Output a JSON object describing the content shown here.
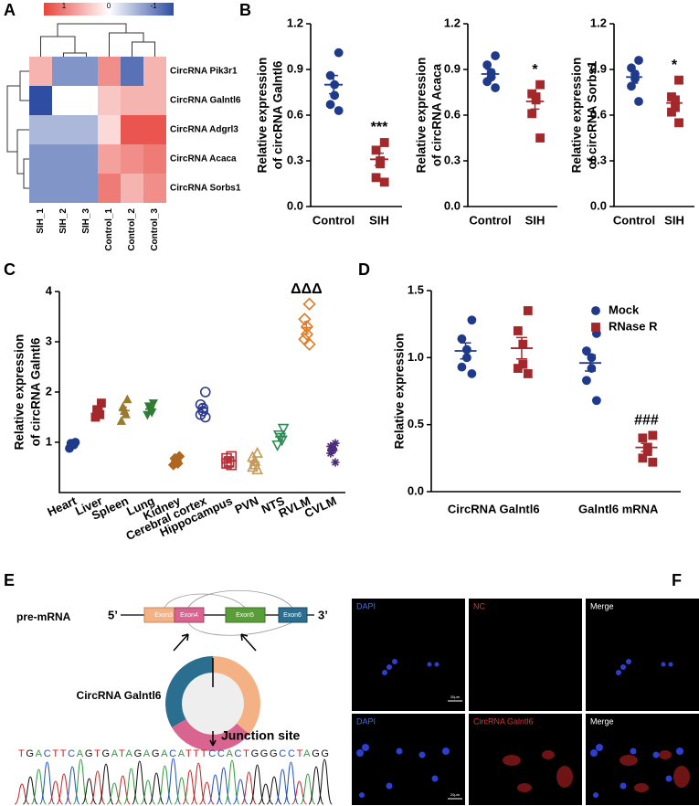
{
  "letters": [
    "A",
    "B",
    "C",
    "D",
    "E",
    "F"
  ],
  "chart_data": [
    {
      "type": "heatmap",
      "rows": [
        "CircRNA Pik3r1",
        "CircRNA Galntl6",
        "CircRNA Adgrl3",
        "CircRNA Acaca",
        "CircRNA Sorbs1"
      ],
      "columns": [
        "SIH_1",
        "SIH_2",
        "SIH_3",
        "Control_1",
        "Control_2",
        "Control_3"
      ],
      "values": [
        [
          0.4,
          -0.6,
          -0.6,
          0.6,
          -0.8,
          0.4
        ],
        [
          -1,
          0,
          0,
          0.3,
          0.4,
          0.4
        ],
        [
          -0.4,
          -0.4,
          -0.4,
          0.2,
          0.9,
          0.9
        ],
        [
          -0.6,
          -0.6,
          -0.6,
          0.5,
          0.6,
          0.7
        ],
        [
          -0.6,
          -0.6,
          -0.6,
          0.7,
          0.4,
          0.6
        ]
      ],
      "zlim": [
        -1,
        1
      ],
      "colorbar_ticks": [
        1,
        0,
        -1
      ],
      "colorscale": [
        "#2f4ea3",
        "#ffffff",
        "#e8433b"
      ]
    },
    {
      "type": "dot",
      "ylabel": [
        "Relative expression",
        "of circRNA Galntl6"
      ],
      "categories": [
        "Control",
        "SIH"
      ],
      "ylim": [
        0,
        1.2
      ],
      "yticks": [
        {
          "value": 0,
          "label": "0.0"
        },
        0.3,
        0.6,
        0.9,
        1.2
      ],
      "series": [
        {
          "colors": [
            "#1f3a8a",
            "#a3282c"
          ],
          "markers": [
            "circle",
            "square"
          ],
          "values": [
            [
              1.01,
              0.86,
              0.8,
              0.73,
              0.67,
              0.63
            ],
            [
              0.42,
              0.37,
              0.3,
              0.28,
              0.19,
              0.16
            ]
          ],
          "means": [
            0.8,
            0.31
          ],
          "errors": [
            0.06,
            0.04
          ]
        }
      ],
      "annotation": "***",
      "annotation_at": "SIH"
    },
    {
      "type": "dot",
      "ylabel": [
        "Relative expression",
        "of circRNA Acaca"
      ],
      "categories": [
        "Control",
        "SIH"
      ],
      "ylim": [
        0,
        1.2
      ],
      "yticks": [
        {
          "value": 0,
          "label": "0.0"
        },
        0.3,
        0.6,
        0.9,
        1.2
      ],
      "series": [
        {
          "colors": [
            "#1f3a8a",
            "#a3282c"
          ],
          "markers": [
            "circle",
            "square"
          ],
          "values": [
            [
              0.99,
              0.93,
              0.88,
              0.85,
              0.82,
              0.78
            ],
            [
              0.8,
              0.74,
              0.72,
              0.7,
              0.61,
              0.45
            ]
          ],
          "means": [
            0.87,
            0.69
          ],
          "errors": [
            0.03,
            0.05
          ]
        }
      ],
      "annotation": "*",
      "annotation_at": "SIH"
    },
    {
      "type": "dot",
      "ylabel": [
        "Relative expression",
        "of circRNA Sorbs1"
      ],
      "categories": [
        "Control",
        "SIH"
      ],
      "ylim": [
        0,
        1.2
      ],
      "yticks": [
        {
          "value": 0,
          "label": "0.0"
        },
        0.3,
        0.6,
        0.9,
        1.2
      ],
      "series": [
        {
          "colors": [
            "#1f3a8a",
            "#a3282c"
          ],
          "markers": [
            "circle",
            "square"
          ],
          "values": [
            [
              0.96,
              0.91,
              0.87,
              0.84,
              0.79,
              0.69
            ],
            [
              0.83,
              0.72,
              0.7,
              0.65,
              0.62,
              0.55
            ]
          ],
          "means": [
            0.85,
            0.68
          ],
          "errors": [
            0.04,
            0.04
          ]
        }
      ],
      "annotation": "*",
      "annotation_at": "SIH"
    },
    {
      "type": "dot",
      "ylabel": [
        "Relative expression",
        "of circRNA Galntl6"
      ],
      "categories": [
        "Heart",
        "Liver",
        "Spleen",
        "Lung",
        "Kidney",
        "Cerebral cortex",
        "Hippocampus",
        "PVN",
        "NTS",
        "RVLM",
        "CVLM"
      ],
      "ylim": [
        0,
        4
      ],
      "yticks": [
        1,
        2,
        3,
        4
      ],
      "series": [
        {
          "colors": [
            "#1f3a8a",
            "#a3282c",
            "#9a7a2c",
            "#2e7d32",
            "#b0661f",
            "#2b3a8f",
            "#b8323a",
            "#c49a5a",
            "#2e8b57",
            "#e07b24",
            "#4b2a7a"
          ],
          "markers": [
            "circle",
            "square",
            "triangle",
            "triangle-down",
            "diamond",
            "circle-open",
            "square-open",
            "triangle-open",
            "triangle-down-open",
            "diamond-open",
            "star"
          ],
          "values": [
            [
              1.0,
              0.98,
              0.97,
              0.95,
              0.88
            ],
            [
              1.78,
              1.65,
              1.6,
              1.55,
              1.5
            ],
            [
              1.85,
              1.7,
              1.62,
              1.55,
              1.42
            ],
            [
              1.78,
              1.72,
              1.65,
              1.6,
              1.55
            ],
            [
              0.72,
              0.68,
              0.62,
              0.58,
              0.55
            ],
            [
              2.0,
              1.75,
              1.68,
              1.62,
              1.55,
              1.5
            ],
            [
              0.72,
              0.68,
              0.62,
              0.6,
              0.58,
              0.55
            ],
            [
              0.78,
              0.7,
              0.62,
              0.55,
              0.5,
              0.45
            ],
            [
              1.28,
              1.15,
              1.1,
              1.05,
              0.95
            ],
            [
              3.75,
              3.45,
              3.3,
              3.15,
              3.05,
              2.95
            ],
            [
              0.98,
              0.92,
              0.88,
              0.85,
              0.78,
              0.6
            ]
          ],
          "means": [
            0.96,
            1.62,
            1.63,
            1.66,
            0.63,
            1.68,
            0.63,
            0.6,
            1.11,
            3.28,
            0.84
          ],
          "errors": [
            0.02,
            0.05,
            0.07,
            0.04,
            0.03,
            0.08,
            0.03,
            0.05,
            0.06,
            0.12,
            0.06
          ]
        }
      ],
      "annotation": "ΔΔΔ",
      "annotation_at": "RVLM"
    },
    {
      "type": "dot",
      "ylabel": [
        "Relative expression"
      ],
      "categories": [
        "CircRNA Galntl6",
        "Galntl6 mRNA"
      ],
      "ylim": [
        0,
        1.5
      ],
      "yticks": [
        {
          "value": 0,
          "label": "0.0"
        },
        0.5,
        {
          "value": 1,
          "label": "1.0"
        },
        1.5
      ],
      "series": [
        {
          "name": "Mock",
          "color": "#1f3a8a",
          "marker": "circle",
          "values": [
            [
              1.28,
              1.14,
              1.06,
              1.0,
              0.93,
              0.88
            ],
            [
              1.18,
              1.05,
              1.0,
              0.92,
              0.83,
              0.68
            ]
          ],
          "means": [
            1.05,
            0.96
          ],
          "errors": [
            0.06,
            0.06
          ]
        },
        {
          "name": "RNase R",
          "color": "#a3282c",
          "marker": "square",
          "values": [
            [
              1.35,
              1.2,
              1.1,
              0.95,
              0.92,
              0.88
            ],
            [
              0.42,
              0.4,
              0.33,
              0.3,
              0.25,
              0.22
            ]
          ],
          "means": [
            1.07,
            0.33
          ],
          "errors": [
            0.08,
            0.03
          ]
        }
      ],
      "annotation": "###",
      "annotation_at": "Galntl6 mRNA",
      "annotation_series": "RNase R"
    }
  ],
  "diagram": {
    "label": "pre-mRNA",
    "five": "5’",
    "three": "3’",
    "exons": [
      "Exon3",
      "Exon4",
      "Exon5",
      "Exon6"
    ],
    "circ_label": "CircRNA Galntl6",
    "junction": "Junction site",
    "sequence": "TGACTTCAGTGATAGAGACATTTCCACTGGGCCTAGG"
  },
  "images": {
    "labels": [
      "DAPI",
      "NC",
      "Merge",
      "DAPI",
      "CircRNA Galntl6",
      "Merge"
    ],
    "scale_bar": "20μm"
  }
}
